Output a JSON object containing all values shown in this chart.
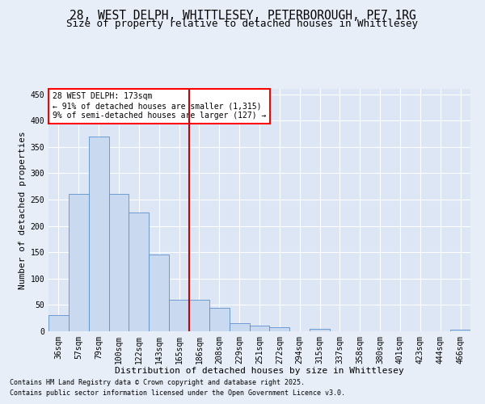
{
  "title_line1": "28, WEST DELPH, WHITTLESEY, PETERBOROUGH, PE7 1RG",
  "title_line2": "Size of property relative to detached houses in Whittlesey",
  "xlabel": "Distribution of detached houses by size in Whittlesey",
  "ylabel": "Number of detached properties",
  "footnote1": "Contains HM Land Registry data © Crown copyright and database right 2025.",
  "footnote2": "Contains public sector information licensed under the Open Government Licence v3.0.",
  "annotation_line1": "28 WEST DELPH: 173sqm",
  "annotation_line2": "← 91% of detached houses are smaller (1,315)",
  "annotation_line3": "9% of semi-detached houses are larger (127) →",
  "bar_color": "#c9d9f0",
  "bar_edge_color": "#5b8fce",
  "vline_color": "#cc0000",
  "categories": [
    "36sqm",
    "57sqm",
    "79sqm",
    "100sqm",
    "122sqm",
    "143sqm",
    "165sqm",
    "186sqm",
    "208sqm",
    "229sqm",
    "251sqm",
    "272sqm",
    "294sqm",
    "315sqm",
    "337sqm",
    "358sqm",
    "380sqm",
    "401sqm",
    "423sqm",
    "444sqm",
    "466sqm"
  ],
  "values": [
    30,
    260,
    370,
    260,
    225,
    145,
    60,
    60,
    45,
    15,
    10,
    7,
    0,
    5,
    0,
    0,
    0,
    0,
    0,
    0,
    3
  ],
  "ylim": [
    0,
    460
  ],
  "yticks": [
    0,
    50,
    100,
    150,
    200,
    250,
    300,
    350,
    400,
    450
  ],
  "background_color": "#e8eef8",
  "plot_background": "#dce6f5",
  "grid_color": "#ffffff",
  "title1_fontsize": 10.5,
  "title2_fontsize": 9.0,
  "axis_label_fontsize": 8,
  "tick_fontsize": 7,
  "annotation_fontsize": 7,
  "footnote_fontsize": 6
}
